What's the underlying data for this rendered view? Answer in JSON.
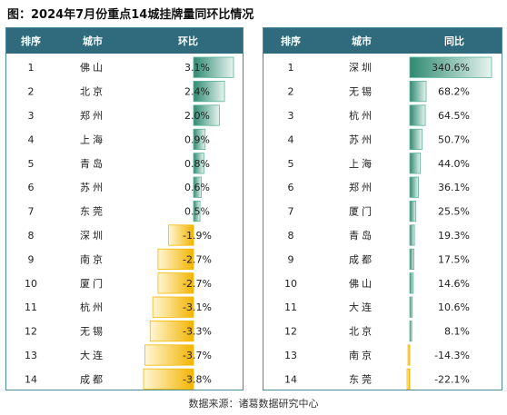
{
  "title": "图：2024年7月份重点14城挂牌量同环比情况",
  "source": "数据来源：诸葛数据研究中心",
  "colors": {
    "header_bg": "#2f6b7c",
    "header_text": "#ffffff",
    "positive": "#5bb39a",
    "negative": "#f5b800"
  },
  "chart_data": [
    {
      "type": "table",
      "headers": [
        "排序",
        "城市",
        "环比"
      ],
      "rank": [
        1,
        2,
        3,
        4,
        5,
        6,
        7,
        8,
        9,
        10,
        11,
        12,
        13,
        14
      ],
      "cities": [
        "佛山",
        "北京",
        "郑州",
        "上海",
        "青岛",
        "苏州",
        "东莞",
        "深圳",
        "南京",
        "厦门",
        "杭州",
        "无锡",
        "大连",
        "成都"
      ],
      "values": [
        3.1,
        2.4,
        2.0,
        0.9,
        0.8,
        0.6,
        0.5,
        -1.9,
        -2.7,
        -2.7,
        -3.1,
        -3.3,
        -3.7,
        -3.8
      ],
      "labels": [
        "3.1%",
        "2.4%",
        "2.0%",
        "0.9%",
        "0.8%",
        "0.6%",
        "0.5%",
        "-1.9%",
        "-2.7%",
        "-2.7%",
        "-3.1%",
        "-3.3%",
        "-3.7%",
        "-3.8%"
      ]
    },
    {
      "type": "table",
      "headers": [
        "排序",
        "城市",
        "同比"
      ],
      "rank": [
        1,
        2,
        3,
        4,
        5,
        6,
        7,
        8,
        9,
        10,
        11,
        12,
        13,
        14
      ],
      "cities": [
        "深圳",
        "无锡",
        "杭州",
        "苏州",
        "上海",
        "郑州",
        "厦门",
        "青岛",
        "成都",
        "佛山",
        "大连",
        "北京",
        "南京",
        "东莞"
      ],
      "values": [
        340.6,
        68.2,
        64.5,
        50.7,
        44.0,
        36.1,
        25.5,
        19.3,
        17.5,
        14.6,
        10.6,
        8.1,
        -14.3,
        -22.1
      ],
      "labels": [
        "340.6%",
        "68.2%",
        "64.5%",
        "50.7%",
        "44.0%",
        "36.1%",
        "25.5%",
        "19.3%",
        "17.5%",
        "14.6%",
        "10.6%",
        "8.1%",
        "-14.3%",
        "-22.1%"
      ]
    }
  ]
}
